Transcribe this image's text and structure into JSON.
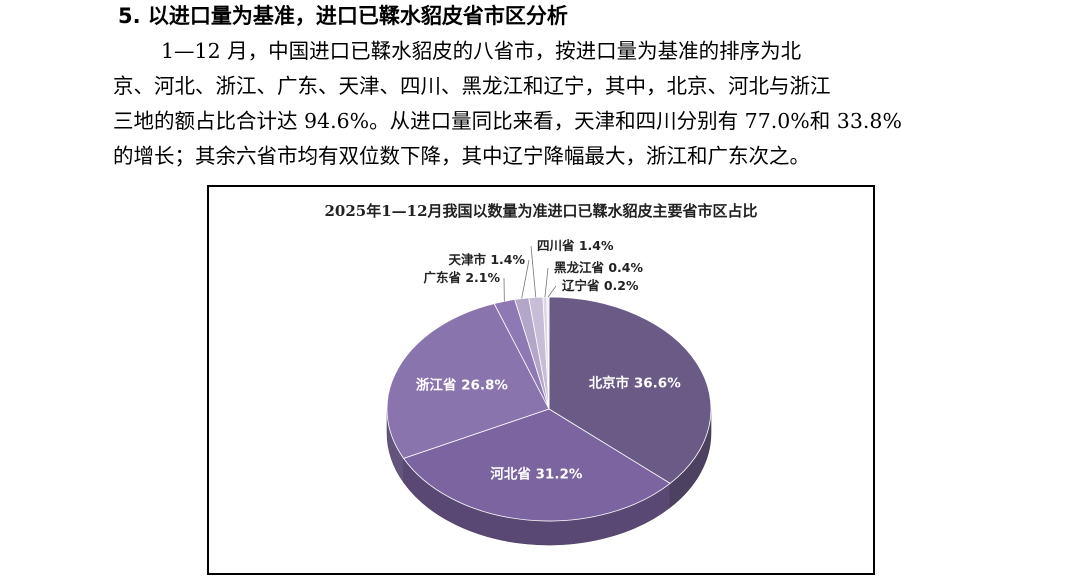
{
  "section": {
    "heading": "5. 以进口量为基准，进口已鞣水貂皮省市区分析",
    "paragraph_lines": [
      "1—12 月，中国进口已鞣水貂皮的八省市，按进口量为基准的排序为北",
      "京、河北、浙江、广东、天津、四川、黑龙江和辽宁，其中，北京、河北与浙江",
      "三地的额占比合计达 94.6%。从进口量同比来看，天津和四川分别有 77.0%和 33.8%",
      "的增长；其余六省市均有双位数下降，其中辽宁降幅最大，浙江和广东次之。"
    ]
  },
  "chart_data": {
    "type": "pie",
    "title": "2025年1—12月我国以数量为准进口已鞣水貂皮主要省市区占比",
    "slices": [
      {
        "name": "北京市",
        "value": 36.6,
        "label": "北京市 36.6%",
        "color": "#6a5a86"
      },
      {
        "name": "河北省",
        "value": 31.2,
        "label": "河北省 31.2%",
        "color": "#7b64a0"
      },
      {
        "name": "浙江省",
        "value": 26.8,
        "label": "浙江省 26.8%",
        "color": "#8a74ad"
      },
      {
        "name": "广东省",
        "value": 2.1,
        "label": "广东省 2.1%",
        "color": "#8f79b4"
      },
      {
        "name": "天津市",
        "value": 1.4,
        "label": "天津市 1.4%",
        "color": "#b3a6c8"
      },
      {
        "name": "四川省",
        "value": 1.4,
        "label": "四川省 1.4%",
        "color": "#c7bdd6"
      },
      {
        "name": "黑龙江省",
        "value": 0.4,
        "label": "黑龙江省 0.4%",
        "color": "#ddd6e6"
      },
      {
        "name": "辽宁省",
        "value": 0.2,
        "label": "辽宁省 0.2%",
        "color": "#ece8f1"
      }
    ],
    "legend": "none",
    "style": "3d-pie"
  }
}
